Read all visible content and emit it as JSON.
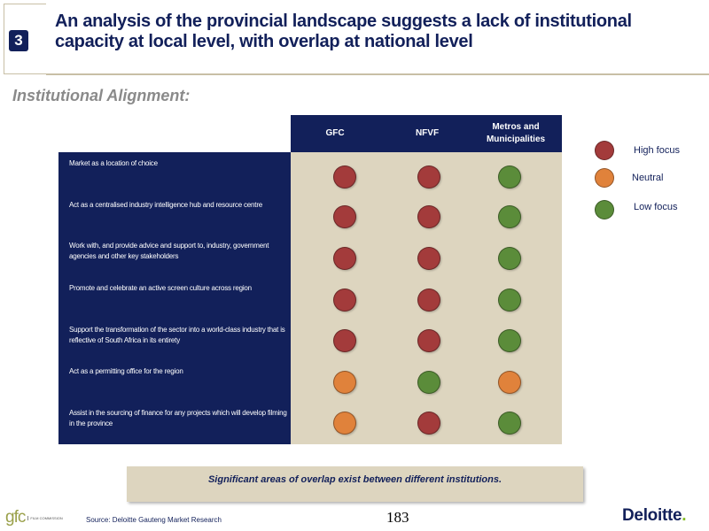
{
  "header": {
    "number": "3",
    "title": "An analysis of the provincial landscape suggests a lack of institutional capacity at local level, with overlap at national level"
  },
  "section_title": "Institutional Alignment:",
  "table": {
    "columns": [
      {
        "label": "GFC"
      },
      {
        "label": "NFVF"
      },
      {
        "label": "Metros and Municipalities"
      }
    ],
    "rows": [
      {
        "label": "Market as a location of choice",
        "ratings": [
          "high",
          "high",
          "low"
        ]
      },
      {
        "label": "Act as a centralised industry intelligence hub and resource centre",
        "ratings": [
          "high",
          "high",
          "low"
        ]
      },
      {
        "label": "Work with, and provide advice and support to, industry, government agencies and other key stakeholders",
        "ratings": [
          "high",
          "high",
          "low"
        ]
      },
      {
        "label": "Promote and celebrate an active screen culture across region",
        "ratings": [
          "high",
          "high",
          "low"
        ]
      },
      {
        "label": "Support the transformation of the sector into a world-class industry that is reflective of South Africa in its entirety",
        "ratings": [
          "high",
          "high",
          "low"
        ]
      },
      {
        "label": "Act as a permitting office for the region",
        "ratings": [
          "neutral",
          "low",
          "neutral"
        ]
      },
      {
        "label": "Assist in the sourcing of finance for any projects which will develop filming in the province",
        "ratings": [
          "neutral",
          "high",
          "low"
        ]
      }
    ]
  },
  "legend": [
    {
      "label": "High focus",
      "key": "high"
    },
    {
      "label": "Neutral",
      "key": "neutral"
    },
    {
      "label": "Low focus",
      "key": "low"
    }
  ],
  "colors": {
    "high": "#a33b3b",
    "neutral": "#e0823b",
    "low": "#5b8c3a",
    "navy": "#12205a",
    "beige": "#ddd5bf"
  },
  "callout": "Significant areas of overlap exist between different institutions.",
  "footer": {
    "gfc_logo": "gfc",
    "gfc_logo_sub": "FILM COMMISSION",
    "source": "Source: Deloitte Gauteng Market Research",
    "page_number": "183",
    "brand": "Deloitte",
    "brand_dot": "."
  }
}
